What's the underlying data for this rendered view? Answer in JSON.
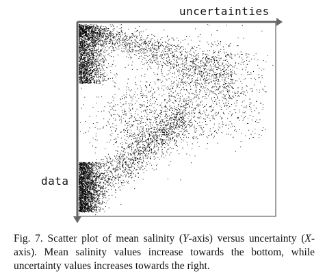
{
  "chart_data": {
    "type": "scatter",
    "xlabel": "uncertainties",
    "ylabel": "data",
    "x_direction": "uncertainty increases to the right",
    "y_direction": "salinity increases towards the bottom",
    "grid": false,
    "legend": "none",
    "point_color": "#000000",
    "density_clusters": [
      {
        "region": "top-left",
        "density": "very high"
      },
      {
        "region": "upper band sweeping right",
        "density": "medium"
      },
      {
        "region": "middle diagonal",
        "density": "medium"
      },
      {
        "region": "bottom-left",
        "density": "very high"
      }
    ]
  },
  "caption": {
    "prefix": "Fig. 7.  Scatter plot of mean salinity (",
    "y_var": "Y",
    "middle": "-axis) versus uncertainty (",
    "x_var": "X",
    "suffix": "-axis). Mean salinity values increase towards the bottom, while uncertainty values increases towards the right."
  }
}
